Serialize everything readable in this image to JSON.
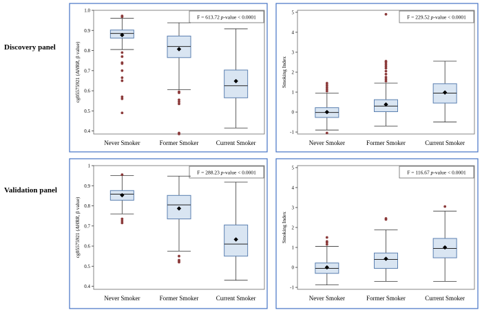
{
  "row_labels": [
    "Discovery panel",
    "Validation panel"
  ],
  "colors": {
    "frame": "#4472c4",
    "box_fill": "#d9e5f2",
    "box_stroke": "#5a7fb0",
    "whisker": "#333333",
    "outlier": "#8b3a3a",
    "mean": "#000000"
  },
  "chart_data": [
    {
      "id": "discovery-cg",
      "type": "boxplot",
      "panel": "Discovery panel",
      "ylabel_prefix": "cg05575921 (",
      "ylabel_gene": "AHRR",
      "ylabel_suffix": ", β value)",
      "ylim": [
        0.385,
        1.0
      ],
      "yticks": [
        0.4,
        0.5,
        0.6,
        0.7,
        0.8,
        0.9,
        1.0
      ],
      "ytick_labels": [
        "0.4",
        "0.5",
        "0.6",
        "0.7",
        "0.8",
        "0.9",
        "1.0"
      ],
      "categories": [
        "Never Smoker",
        "Former Smoker",
        "Current Smoker"
      ],
      "stat_prefix": "F = 613.72   ",
      "stat_p": "p",
      "stat_suffix": "-value < 0.0001",
      "boxes": [
        {
          "whisker_low": 0.805,
          "q1": 0.862,
          "median": 0.885,
          "q3": 0.902,
          "whisker_high": 0.96,
          "mean": 0.877,
          "outliers": [
            0.968,
            0.972,
            0.79,
            0.77,
            0.74,
            0.735,
            0.7,
            0.665,
            0.65,
            0.57,
            0.56,
            0.49
          ]
        },
        {
          "whisker_low": 0.605,
          "q1": 0.765,
          "median": 0.82,
          "q3": 0.872,
          "whisker_high": 0.938,
          "mean": 0.807,
          "outliers": [
            0.595,
            0.59,
            0.555,
            0.545,
            0.535,
            0.39,
            0.385
          ]
        },
        {
          "whisker_low": 0.415,
          "q1": 0.565,
          "median": 0.625,
          "q3": 0.703,
          "whisker_high": 0.908,
          "mean": 0.648,
          "outliers": []
        }
      ]
    },
    {
      "id": "discovery-si",
      "type": "boxplot",
      "panel": "Discovery panel",
      "ylabel": "Smoking Index",
      "ylim": [
        -1.1,
        5.1
      ],
      "yticks": [
        -1,
        0,
        1,
        2,
        3,
        4,
        5
      ],
      "ytick_labels": [
        "-1",
        "0",
        "1",
        "2",
        "3",
        "4",
        "5"
      ],
      "categories": [
        "Never Smoker",
        "Former Smoker",
        "Current Smoker"
      ],
      "stat_prefix": "F = 229.52   ",
      "stat_p": "p",
      "stat_suffix": "-value < 0.0001",
      "boxes": [
        {
          "whisker_low": -0.9,
          "q1": -0.27,
          "median": -0.02,
          "q3": 0.22,
          "whisker_high": 0.95,
          "mean": 0.0,
          "outliers": [
            1.05,
            1.15,
            1.25,
            1.35,
            1.45,
            -1.05
          ]
        },
        {
          "whisker_low": -0.7,
          "q1": 0.02,
          "median": 0.3,
          "q3": 0.62,
          "whisker_high": 1.45,
          "mean": 0.38,
          "outliers": [
            1.55,
            1.65,
            1.75,
            1.9,
            2.05,
            2.2,
            2.3,
            2.4,
            2.5,
            2.55,
            4.9
          ]
        },
        {
          "whisker_low": -0.5,
          "q1": 0.45,
          "median": 0.95,
          "q3": 1.42,
          "whisker_high": 2.55,
          "mean": 0.98,
          "outliers": []
        }
      ]
    },
    {
      "id": "validation-cg",
      "type": "boxplot",
      "panel": "Validation panel",
      "ylabel_prefix": "cg05575921 (",
      "ylabel_gene": "AHRR",
      "ylabel_suffix": ", β value)",
      "ylim": [
        0.385,
        1.0
      ],
      "yticks": [
        0.4,
        0.5,
        0.6,
        0.7,
        0.8,
        0.9,
        1.0
      ],
      "ytick_labels": [
        "0.4",
        "0.5",
        "0.6",
        "0.7",
        "0.8",
        "0.9",
        "1"
      ],
      "categories": [
        "Never Smoker",
        "Former Smoker",
        "Current Smoker"
      ],
      "stat_prefix": "F = 288.23   ",
      "stat_p": "p",
      "stat_suffix": "-value < 0.0001",
      "boxes": [
        {
          "whisker_low": 0.76,
          "q1": 0.828,
          "median": 0.858,
          "q3": 0.876,
          "whisker_high": 0.95,
          "mean": 0.853,
          "outliers": [
            0.955,
            0.735,
            0.725,
            0.715
          ]
        },
        {
          "whisker_low": 0.575,
          "q1": 0.735,
          "median": 0.805,
          "q3": 0.852,
          "whisker_high": 0.948,
          "mean": 0.787,
          "outliers": [
            0.55,
            0.53,
            0.525,
            0.52
          ]
        },
        {
          "whisker_low": 0.43,
          "q1": 0.55,
          "median": 0.61,
          "q3": 0.705,
          "whisker_high": 0.918,
          "mean": 0.633,
          "outliers": []
        }
      ]
    },
    {
      "id": "validation-si",
      "type": "boxplot",
      "panel": "Validation panel",
      "ylabel": "Smoking Index",
      "ylim": [
        -1.1,
        5.1
      ],
      "yticks": [
        -1,
        0,
        1,
        2,
        3,
        4,
        5
      ],
      "ytick_labels": [
        "-1",
        "0",
        "1",
        "2",
        "3",
        "4",
        "5"
      ],
      "categories": [
        "Never Smoker",
        "Former Smoker",
        "Current Smoker"
      ],
      "stat_prefix": "F = 116.67   ",
      "stat_p": "p",
      "stat_suffix": "-value < 0.0001",
      "boxes": [
        {
          "whisker_low": -0.88,
          "q1": -0.3,
          "median": -0.05,
          "q3": 0.22,
          "whisker_high": 1.05,
          "mean": 0.0,
          "outliers": [
            1.15,
            1.25,
            1.3,
            1.5
          ]
        },
        {
          "whisker_low": -0.7,
          "q1": -0.05,
          "median": 0.4,
          "q3": 0.72,
          "whisker_high": 1.88,
          "mean": 0.43,
          "outliers": [
            2.4,
            2.45
          ]
        },
        {
          "whisker_low": -0.7,
          "q1": 0.48,
          "median": 0.95,
          "q3": 1.45,
          "whisker_high": 2.82,
          "mean": 1.0,
          "outliers": [
            3.05
          ]
        }
      ]
    }
  ]
}
